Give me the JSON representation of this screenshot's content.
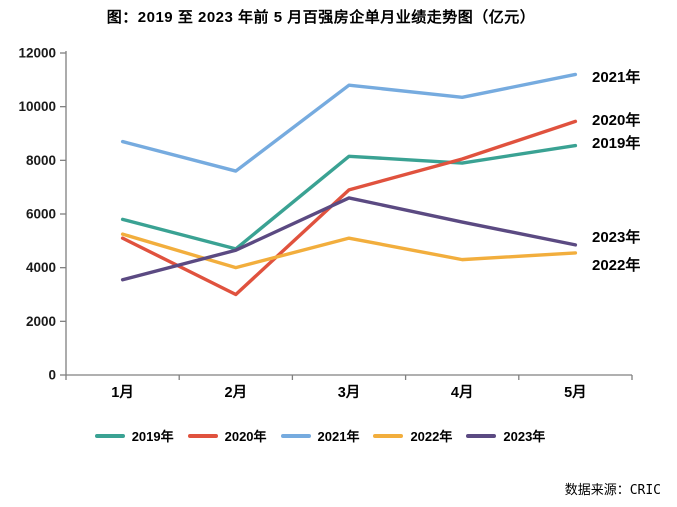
{
  "title": "图：2019 至 2023 年前 5 月百强房企单月业绩走势图（亿元）",
  "source": "数据来源：CRIC",
  "chart_data": {
    "type": "line",
    "title": "图：2019 至 2023 年前 5 月百强房企单月业绩走势图（亿元）",
    "categories": [
      "1月",
      "2月",
      "3月",
      "4月",
      "5月"
    ],
    "series": [
      {
        "name": "2019年",
        "color": "#3AA293",
        "values": [
          5800,
          4700,
          8150,
          7900,
          8550
        ]
      },
      {
        "name": "2020年",
        "color": "#E0523E",
        "values": [
          5100,
          3000,
          6900,
          8050,
          9450
        ]
      },
      {
        "name": "2021年",
        "color": "#76ABDF",
        "values": [
          8700,
          7600,
          10800,
          10350,
          11200
        ]
      },
      {
        "name": "2022年",
        "color": "#F2AE3D",
        "values": [
          5250,
          4000,
          5100,
          4300,
          4550
        ]
      },
      {
        "name": "2023年",
        "color": "#5B4A82",
        "values": [
          3550,
          4650,
          6600,
          5700,
          4850
        ]
      }
    ],
    "xlabel": "",
    "ylabel": "",
    "ylim": [
      0,
      12000
    ],
    "ytick_step": 2000,
    "ytick_labels": [
      "0",
      "2000",
      "4000",
      "6000",
      "8000",
      "10000",
      "12000"
    ],
    "grid": false,
    "legend_position": "bottom",
    "legend": [
      "2019年",
      "2020年",
      "2021年",
      "2022年",
      "2023年"
    ],
    "right_labels": [
      "2021年",
      "2020年",
      "2019年",
      "2023年",
      "2022年"
    ],
    "axis_color": "#808080"
  }
}
